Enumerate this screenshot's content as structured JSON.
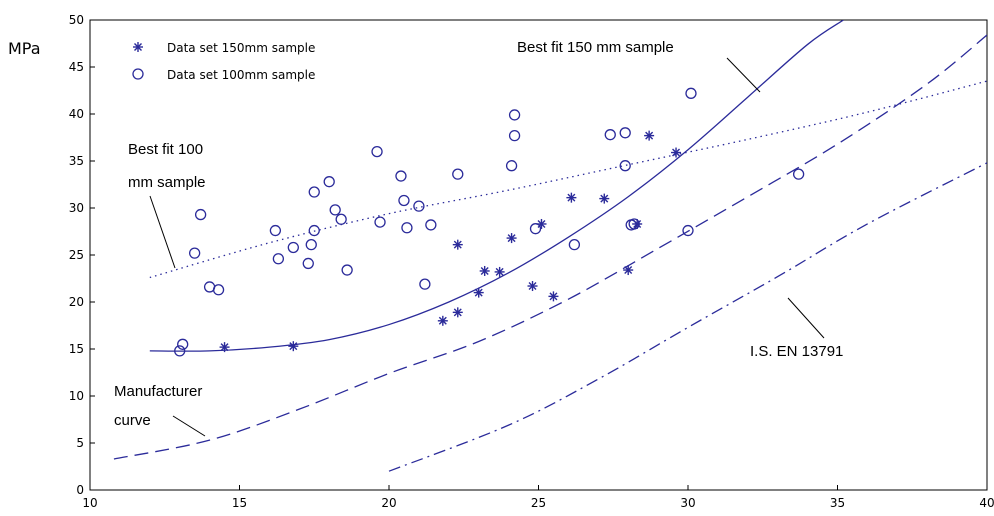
{
  "chart_data": {
    "type": "scatter",
    "y_unit": "MPa",
    "xlim": [
      10,
      40
    ],
    "ylim": [
      0,
      50
    ],
    "x_ticks": [
      "10",
      "15",
      "20",
      "25",
      "30",
      "35",
      "40"
    ],
    "y_ticks": [
      "0",
      "5",
      "10",
      "15",
      "20",
      "25",
      "30",
      "35",
      "40",
      "45",
      "50"
    ],
    "grid": false,
    "legend_position": "top-left",
    "legend": [
      "Data set 150mm sample",
      "Data set 100mm sample"
    ],
    "series": [
      {
        "name": "Data set 150mm sample",
        "kind": "points",
        "marker": "star",
        "x": [
          14.5,
          16.8,
          21.8,
          22.3,
          22.3,
          23.0,
          23.2,
          23.7,
          24.1,
          24.8,
          25.1,
          25.5,
          26.1,
          27.2,
          28.0,
          28.3,
          28.7,
          29.6
        ],
        "y": [
          15.2,
          15.3,
          18.0,
          18.9,
          26.1,
          21.0,
          23.3,
          23.2,
          26.8,
          21.7,
          28.3,
          20.6,
          31.1,
          31.0,
          23.4,
          28.3,
          37.7,
          35.9
        ]
      },
      {
        "name": "Data set 100mm sample",
        "kind": "points",
        "marker": "circle",
        "x": [
          13.0,
          13.1,
          13.5,
          13.7,
          14.0,
          14.3,
          16.2,
          16.3,
          16.8,
          17.3,
          17.4,
          17.5,
          17.5,
          18.0,
          18.2,
          18.4,
          18.6,
          19.6,
          19.7,
          20.4,
          20.5,
          20.6,
          21.0,
          21.2,
          21.4,
          22.3,
          24.1,
          24.2,
          24.2,
          24.9,
          26.2,
          27.4,
          27.9,
          27.9,
          28.1,
          28.2,
          30.0,
          30.1,
          33.7
        ],
        "y": [
          14.8,
          15.5,
          25.2,
          29.3,
          21.6,
          21.3,
          27.6,
          24.6,
          25.8,
          24.1,
          26.1,
          31.7,
          27.6,
          32.8,
          29.8,
          28.8,
          23.4,
          36.0,
          28.5,
          33.4,
          30.8,
          27.9,
          30.2,
          21.9,
          28.2,
          33.6,
          34.5,
          39.9,
          37.7,
          27.8,
          26.1,
          37.8,
          34.5,
          38.0,
          28.2,
          28.3,
          27.6,
          42.2,
          33.6
        ]
      },
      {
        "name": "Best fit 150 mm sample",
        "kind": "line",
        "style": "solid",
        "x": [
          12,
          14,
          16,
          18,
          20,
          22,
          24,
          26,
          28,
          30,
          32,
          34,
          35.2
        ],
        "y": [
          14.8,
          14.8,
          15.2,
          16.0,
          17.6,
          20.0,
          23.1,
          26.9,
          31.2,
          36.2,
          41.8,
          47.4,
          50.0
        ]
      },
      {
        "name": "Best fit 100 mm sample",
        "kind": "line",
        "style": "dotted",
        "x": [
          12,
          16,
          20,
          24,
          28,
          32,
          36,
          40
        ],
        "y": [
          22.6,
          26.3,
          29.4,
          31.9,
          34.6,
          37.3,
          40.2,
          43.5
        ]
      },
      {
        "name": "Manufacturer curve",
        "kind": "line",
        "style": "dashed",
        "x": [
          10.8,
          14,
          17,
          20,
          23,
          26,
          29,
          32,
          35,
          38,
          40
        ],
        "y": [
          3.3,
          5.3,
          8.6,
          12.4,
          15.8,
          20.3,
          25.7,
          31.2,
          36.8,
          43.2,
          48.4
        ]
      },
      {
        "name": "I.S. EN 13791",
        "kind": "line",
        "style": "dashdot",
        "x": [
          20,
          24,
          27,
          30,
          33,
          36,
          40
        ],
        "y": [
          2.0,
          6.9,
          11.8,
          17.3,
          22.7,
          28.3,
          34.8
        ]
      }
    ],
    "annotations": {
      "best_fit_150_label": "Best fit 150 mm sample",
      "best_fit_100_line1": "Best fit 100",
      "best_fit_100_line2": "mm sample",
      "manufacturer_line1": "Manufacturer",
      "manufacturer_line2": "curve",
      "is_en_label": "I.S. EN 13791"
    }
  },
  "colors": {
    "data": "#2b2b9a",
    "axes": "#000000"
  }
}
